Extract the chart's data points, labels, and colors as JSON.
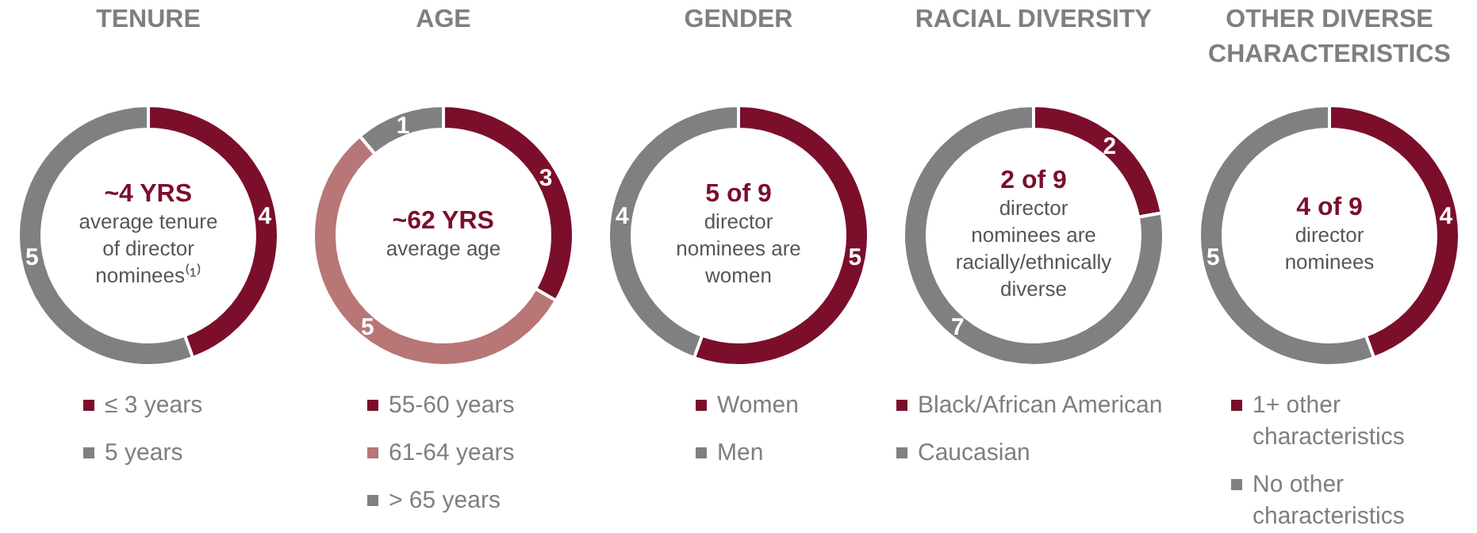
{
  "chart_data": [
    {
      "type": "donut",
      "title": "TENURE",
      "categories": [
        "≤ 3 years",
        "5 years"
      ],
      "values": [
        4,
        5
      ],
      "colors": [
        "#7b0f2b",
        "#808083"
      ],
      "data_labels": true,
      "legend": "bottom",
      "annotations": [
        "~4 YRS",
        "average tenure of director nominees⁽¹⁾"
      ]
    },
    {
      "type": "donut",
      "title": "AGE",
      "categories": [
        "55-60 years",
        "61-64 years",
        "> 65 years"
      ],
      "values": [
        3,
        5,
        1
      ],
      "colors": [
        "#7b0f2b",
        "#b87676",
        "#808083"
      ],
      "data_labels": true,
      "legend": "bottom",
      "annotations": [
        "~62 YRS",
        "average age"
      ]
    },
    {
      "type": "donut",
      "title": "GENDER",
      "categories": [
        "Women",
        "Men"
      ],
      "values": [
        5,
        4
      ],
      "colors": [
        "#7b0f2b",
        "#808083"
      ],
      "data_labels": true,
      "legend": "bottom",
      "annotations": [
        "5 of 9",
        "director nominees are women"
      ]
    },
    {
      "type": "donut",
      "title": "RACIAL DIVERSITY",
      "categories": [
        "Black/African American",
        "Caucasian"
      ],
      "values": [
        2,
        7
      ],
      "colors": [
        "#7b0f2b",
        "#808083"
      ],
      "data_labels": true,
      "legend": "bottom",
      "annotations": [
        "2 of 9",
        "director nominees are racially/ethnically diverse"
      ]
    },
    {
      "type": "donut",
      "title": "OTHER DIVERSE CHARACTERISTICS",
      "categories": [
        "1+ other characteristics",
        "No other characteristics"
      ],
      "values": [
        4,
        5
      ],
      "colors": [
        "#7b0f2b",
        "#808083"
      ],
      "data_labels": true,
      "legend": "bottom",
      "annotations": [
        "4 of 9",
        "director nominees"
      ]
    }
  ]
}
